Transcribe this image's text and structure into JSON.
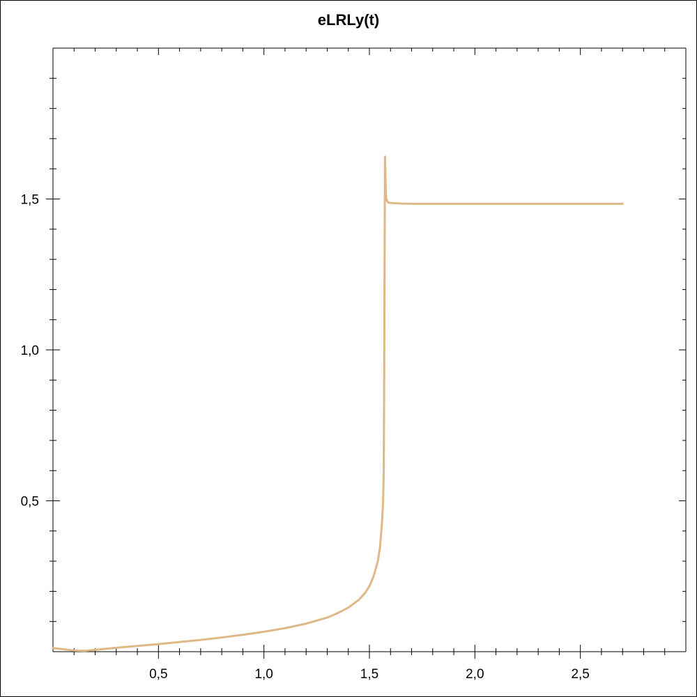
{
  "chart_data": {
    "type": "line",
    "title": "eLRLy(t)",
    "xlabel": "",
    "ylabel": "",
    "xlim": [
      0,
      3.0
    ],
    "ylim": [
      0,
      2.0
    ],
    "x_ticks": [
      {
        "value": 0.5,
        "label": "0,5"
      },
      {
        "value": 1.0,
        "label": "1,0"
      },
      {
        "value": 1.5,
        "label": "1,5"
      },
      {
        "value": 2.0,
        "label": "2,0"
      },
      {
        "value": 2.5,
        "label": "2,5"
      }
    ],
    "y_ticks": [
      {
        "value": 0.5,
        "label": "0,5"
      },
      {
        "value": 1.0,
        "label": "1,0"
      },
      {
        "value": 1.5,
        "label": "1,5"
      }
    ],
    "x_minor_step": 0.1,
    "y_minor_step": 0.1,
    "grid": false,
    "color": "#deb887",
    "series": [
      {
        "x": [
          0.0,
          0.05,
          0.1,
          0.15,
          0.2,
          0.3,
          0.4,
          0.5,
          0.6,
          0.7,
          0.8,
          0.9,
          1.0,
          1.1,
          1.2,
          1.3,
          1.35,
          1.4,
          1.45,
          1.48,
          1.5,
          1.52,
          1.54,
          1.55,
          1.56,
          1.565,
          1.568,
          1.57,
          1.572,
          1.574,
          1.576,
          1.578,
          1.58,
          1.585,
          1.59,
          1.6,
          1.65,
          1.7,
          1.8,
          2.0,
          2.2,
          2.4,
          2.6,
          2.7
        ],
        "y": [
          0.012,
          0.008,
          0.004,
          0.003,
          0.006,
          0.013,
          0.019,
          0.025,
          0.032,
          0.039,
          0.047,
          0.056,
          0.066,
          0.078,
          0.093,
          0.113,
          0.128,
          0.146,
          0.172,
          0.195,
          0.217,
          0.25,
          0.3,
          0.345,
          0.43,
          0.5,
          0.6,
          0.9,
          1.3,
          1.64,
          1.58,
          1.52,
          1.5,
          1.492,
          1.488,
          1.487,
          1.485,
          1.484,
          1.484,
          1.484,
          1.484,
          1.484,
          1.484,
          1.484
        ]
      }
    ]
  }
}
